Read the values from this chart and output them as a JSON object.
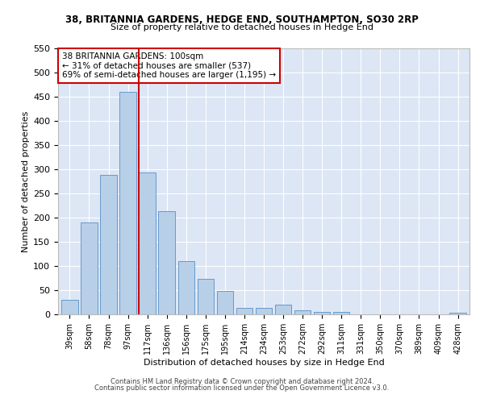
{
  "title1": "38, BRITANNIA GARDENS, HEDGE END, SOUTHAMPTON, SO30 2RP",
  "title2": "Size of property relative to detached houses in Hedge End",
  "xlabel": "Distribution of detached houses by size in Hedge End",
  "ylabel": "Number of detached properties",
  "annotation_line1": "38 BRITANNIA GARDENS: 100sqm",
  "annotation_line2": "← 31% of detached houses are smaller (537)",
  "annotation_line3": "69% of semi-detached houses are larger (1,195) →",
  "footer1": "Contains HM Land Registry data © Crown copyright and database right 2024.",
  "footer2": "Contains public sector information licensed under the Open Government Licence v3.0.",
  "bar_color": "#b8cfe8",
  "bar_edge_color": "#6699cc",
  "vline_color": "#cc0000",
  "background_color": "#dce6f5",
  "grid_color": "#ffffff",
  "categories": [
    "39sqm",
    "58sqm",
    "78sqm",
    "97sqm",
    "117sqm",
    "136sqm",
    "156sqm",
    "175sqm",
    "195sqm",
    "214sqm",
    "234sqm",
    "253sqm",
    "272sqm",
    "292sqm",
    "311sqm",
    "331sqm",
    "350sqm",
    "370sqm",
    "389sqm",
    "409sqm",
    "428sqm"
  ],
  "values": [
    30,
    190,
    288,
    460,
    293,
    213,
    110,
    73,
    48,
    13,
    13,
    20,
    8,
    5,
    5,
    0,
    0,
    0,
    0,
    0,
    4
  ],
  "vline_x_index": 3.55,
  "ylim": [
    0,
    550
  ],
  "yticks": [
    0,
    50,
    100,
    150,
    200,
    250,
    300,
    350,
    400,
    450,
    500,
    550
  ]
}
